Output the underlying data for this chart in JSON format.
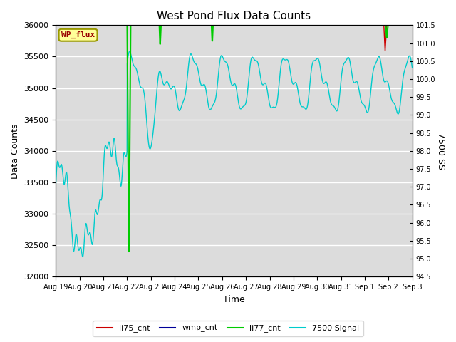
{
  "title": "West Pond Flux Data Counts",
  "xlabel": "Time",
  "ylabel_left": "Data Counts",
  "ylabel_right": "7500 SS",
  "ylim_left": [
    32000,
    36000
  ],
  "ylim_right": [
    94.5,
    101.5
  ],
  "bg_color": "#dcdcdc",
  "fig_color": "#ffffff",
  "legend_items": [
    "li75_cnt",
    "wmp_cnt",
    "li77_cnt",
    "7500 Signal"
  ],
  "legend_colors": [
    "#cc0000",
    "#000099",
    "#00cc00",
    "#00cccc"
  ],
  "wp_flux_box_color": "#ffff99",
  "wp_flux_text_color": "#990000",
  "wp_flux_border_color": "#999900",
  "x_tick_labels": [
    "Aug 19",
    "Aug 20",
    "Aug 21",
    "Aug 22",
    "Aug 23",
    "Aug 24",
    "Aug 25",
    "Aug 26",
    "Aug 27",
    "Aug 28",
    "Aug 29",
    "Aug 30",
    "Aug 31",
    "Sep 1",
    "Sep 2",
    "Sep 3"
  ],
  "yticks_left": [
    32000,
    32500,
    33000,
    33500,
    34000,
    34500,
    35000,
    35500,
    36000
  ],
  "yticks_right": [
    94.5,
    95.0,
    95.5,
    96.0,
    96.5,
    97.0,
    97.5,
    98.0,
    98.5,
    99.0,
    99.5,
    100.0,
    100.5,
    101.0,
    101.5
  ]
}
